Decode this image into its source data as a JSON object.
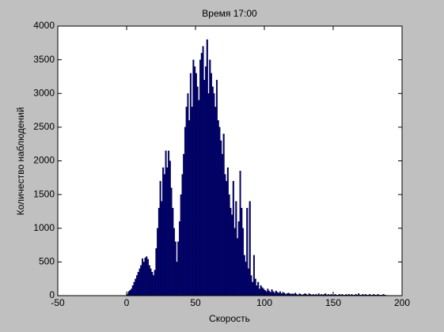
{
  "chart_data": {
    "type": "histogram",
    "title": "Время 17:00",
    "x_label": "Скорость",
    "y_label": "Количество наблюдений",
    "color": "#000080",
    "bins": [
      0,
      1,
      2,
      3,
      4,
      5,
      6,
      7,
      8,
      9,
      10,
      11,
      12,
      13,
      14,
      15,
      16,
      17,
      18,
      19,
      20,
      21,
      22,
      23,
      24,
      25,
      26,
      27,
      28,
      29,
      30,
      31,
      32,
      33,
      34,
      35,
      36,
      37,
      38,
      39,
      40,
      41,
      42,
      43,
      44,
      45,
      46,
      47,
      48,
      49,
      50,
      51,
      52,
      53,
      54,
      55,
      56,
      57,
      58,
      59,
      60,
      61,
      62,
      63,
      64,
      65,
      66,
      67,
      68,
      69,
      70,
      71,
      72,
      73,
      74,
      75,
      76,
      77,
      78,
      79,
      80,
      81,
      82,
      83,
      84,
      85,
      86,
      87,
      88,
      89,
      90,
      91,
      92,
      93,
      94,
      95,
      96,
      97,
      98,
      99,
      100,
      101,
      102,
      103,
      104,
      105,
      106,
      107,
      108,
      109,
      110,
      111,
      112,
      113,
      114,
      115,
      116,
      117,
      118,
      119,
      120,
      121,
      122,
      123,
      124,
      125,
      126,
      127,
      128,
      129,
      130,
      131,
      132,
      133,
      134,
      135,
      136,
      137,
      138,
      139,
      140,
      141,
      142,
      143,
      144,
      145,
      146,
      147,
      148,
      149,
      150,
      151,
      152,
      153,
      154,
      155,
      156,
      157,
      158,
      159,
      160,
      161,
      162,
      163,
      164,
      165,
      166,
      167,
      168,
      169,
      170,
      171,
      172,
      173,
      174,
      175,
      176,
      177,
      178,
      179,
      180,
      181,
      182,
      183,
      184,
      185,
      186,
      187,
      188,
      189,
      190
    ],
    "values": [
      20,
      60,
      80,
      100,
      150,
      200,
      250,
      300,
      350,
      400,
      450,
      550,
      500,
      560,
      580,
      540,
      450,
      400,
      350,
      300,
      380,
      700,
      1000,
      1300,
      1700,
      1400,
      1900,
      1800,
      2150,
      1900,
      2150,
      2000,
      1600,
      1300,
      1000,
      800,
      500,
      800,
      1100,
      1500,
      1800,
      2100,
      2500,
      2800,
      3000,
      2600,
      3300,
      2800,
      3500,
      3400,
      3300,
      3100,
      2900,
      3500,
      3600,
      3700,
      3200,
      3400,
      3800,
      3000,
      3500,
      3300,
      3100,
      3000,
      2800,
      3200,
      2600,
      2500,
      2300,
      2100,
      2400,
      1800,
      1700,
      1900,
      1500,
      1300,
      1200,
      1700,
      1000,
      1400,
      850,
      1100,
      1850,
      1300,
      1000,
      600,
      500,
      1300,
      400,
      1400,
      300,
      200,
      600,
      250,
      150,
      200,
      100,
      150,
      120,
      100,
      80,
      60,
      100,
      70,
      50,
      90,
      60,
      40,
      70,
      50,
      40,
      60,
      30,
      50,
      40,
      20,
      30,
      40,
      30,
      20,
      30,
      20,
      40,
      20,
      10,
      30,
      20,
      10,
      20,
      30,
      20,
      10,
      30,
      20,
      10,
      20,
      10,
      20,
      10,
      30,
      10,
      20,
      10,
      20,
      30,
      10,
      20,
      10,
      20,
      10,
      10,
      20,
      10,
      10,
      20,
      10,
      20,
      10,
      10,
      20,
      10,
      20,
      10,
      20,
      10,
      10,
      20,
      10,
      30,
      10,
      10,
      20,
      10,
      20,
      10,
      10,
      20,
      10,
      10,
      20,
      10,
      10,
      20,
      10,
      10,
      10,
      20,
      10,
      5,
      5
    ],
    "xlim": [
      -50,
      200
    ],
    "xticks": [
      -50,
      0,
      50,
      100,
      150,
      200
    ],
    "ylim": [
      0,
      4000
    ],
    "yticks": [
      0,
      500,
      1000,
      1500,
      2000,
      2500,
      3000,
      3500,
      4000
    ]
  }
}
